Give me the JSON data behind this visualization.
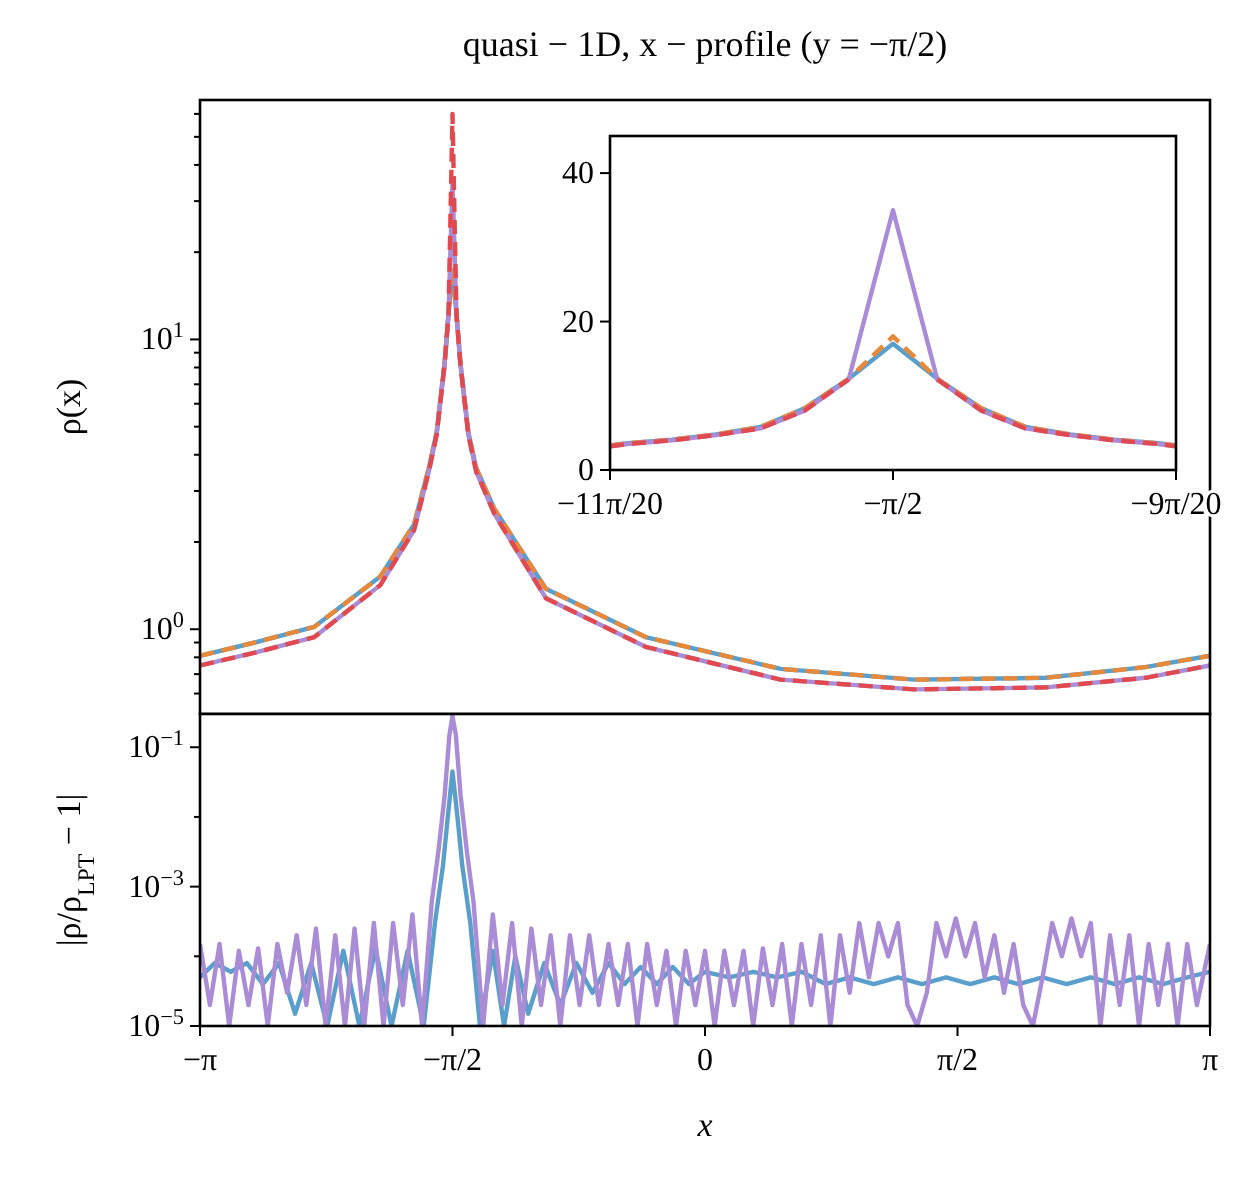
{
  "chart_data": [
    {
      "type": "line",
      "title": "quasi − 1D, x − profile (y = −π/2)",
      "ylabel": "ρ(x)",
      "log": "y",
      "tick_labels": "y",
      "xlim": [
        -3.1416,
        3.1416
      ],
      "xticks": [
        {
          "value": -3.1416,
          "label": null
        },
        {
          "value": -1.5708,
          "label": null
        },
        {
          "value": 0,
          "label": null
        },
        {
          "value": 1.5708,
          "label": null
        },
        {
          "value": 3.1416,
          "label": null
        }
      ],
      "ylim": [
        0.51,
        67
      ],
      "yticks": [
        {
          "value": 0.6,
          "label": null
        },
        {
          "value": 0.7,
          "label": null
        },
        {
          "value": 0.8,
          "label": null
        },
        {
          "value": 0.9,
          "label": null
        },
        {
          "value": 1,
          "label": "10$^{0}$"
        },
        {
          "value": 2,
          "label": null
        },
        {
          "value": 3,
          "label": null
        },
        {
          "value": 4,
          "label": null
        },
        {
          "value": 5,
          "label": null
        },
        {
          "value": 6,
          "label": null
        },
        {
          "value": 7,
          "label": null
        },
        {
          "value": 8,
          "label": null
        },
        {
          "value": 9,
          "label": null
        },
        {
          "value": 10,
          "label": "10$^{1}$"
        },
        {
          "value": 20,
          "label": null
        },
        {
          "value": 30,
          "label": null
        },
        {
          "value": 40,
          "label": null
        },
        {
          "value": 50,
          "label": null
        },
        {
          "value": 60,
          "label": null
        }
      ],
      "x": [
        -3.1416,
        -2.8,
        -2.43,
        -2.02,
        -1.81,
        -1.7181,
        -1.669,
        -1.6199,
        -1.5954,
        -1.5708,
        -1.5462,
        -1.5217,
        -1.4726,
        -1.4235,
        -1.31,
        -0.99,
        -0.37,
        0.47,
        1.3,
        2.12,
        2.74,
        3.1416
      ],
      "series": [
        {
          "color": "#5a9fcb",
          "values": [
            0.81,
            0.9,
            1.02,
            1.52,
            2.3,
            3.6,
            4.8,
            8.3,
            12.3,
            17,
            12.3,
            8.3,
            4.8,
            3.6,
            2.6,
            1.38,
            0.94,
            0.73,
            0.67,
            0.68,
            0.74,
            0.81
          ]
        },
        {
          "color": "#e8893a",
          "line_style": "dashed",
          "values": [
            0.81,
            0.9,
            1.02,
            1.52,
            2.3,
            3.6,
            4.8,
            8.3,
            12.3,
            18,
            12.3,
            8.3,
            4.8,
            3.6,
            2.6,
            1.38,
            0.94,
            0.73,
            0.67,
            0.68,
            0.74,
            0.81
          ]
        },
        {
          "color": "#a98bd6",
          "values": [
            0.75,
            0.83,
            0.94,
            1.42,
            2.2,
            3.5,
            4.7,
            8.2,
            12.2,
            35,
            12.2,
            8.2,
            4.7,
            3.5,
            2.5,
            1.28,
            0.87,
            0.67,
            0.62,
            0.63,
            0.68,
            0.75
          ]
        },
        {
          "color": "#e2494e",
          "line_style": "dashed",
          "values": [
            0.75,
            0.83,
            0.94,
            1.42,
            2.2,
            3.5,
            4.7,
            8.2,
            12.2,
            60,
            12.2,
            8.2,
            4.7,
            3.5,
            2.5,
            1.28,
            0.87,
            0.67,
            0.62,
            0.63,
            0.68,
            0.75
          ]
        }
      ]
    },
    {
      "type": "line",
      "xlim": [
        -1.7279,
        -1.4137
      ],
      "xticks": [
        {
          "value": -1.7279,
          "label": "−11π/20"
        },
        {
          "value": -1.5708,
          "label": "−π/2"
        },
        {
          "value": -1.4137,
          "label": "−9π/20"
        }
      ],
      "ylim": [
        0,
        45
      ],
      "yticks": [
        0,
        20,
        40
      ],
      "x": [
        -1.7279,
        -1.7181,
        -1.6935,
        -1.669,
        -1.6444,
        -1.6199,
        -1.5954,
        -1.5708,
        -1.5462,
        -1.5217,
        -1.4972,
        -1.4726,
        -1.4481,
        -1.4235,
        -1.4137
      ],
      "series": [
        {
          "color": "#5a9fcb",
          "values": [
            3.3,
            3.6,
            4.1,
            4.8,
            5.8,
            8.3,
            12.3,
            17,
            12.3,
            8.3,
            5.8,
            4.8,
            4.1,
            3.6,
            3.3
          ]
        },
        {
          "color": "#e8893a",
          "line_style": "dashed",
          "values": [
            3.3,
            3.6,
            4.1,
            4.8,
            5.8,
            8.3,
            12.3,
            18,
            12.3,
            8.3,
            5.8,
            4.8,
            4.1,
            3.6,
            3.3
          ]
        },
        {
          "color": "#a98bd6",
          "values": [
            3.2,
            3.5,
            4.0,
            4.7,
            5.6,
            8.0,
            12.2,
            35,
            12.2,
            8.0,
            5.6,
            4.7,
            4.0,
            3.5,
            3.2
          ]
        },
        {
          "color": "#e2494e",
          "line_style": "dashed",
          "values": [
            3.2,
            3.5,
            4.0,
            4.7,
            5.6,
            8.0,
            12.2,
            null,
            12.2,
            8.0,
            5.6,
            4.7,
            4.0,
            3.5,
            3.2
          ]
        }
      ]
    },
    {
      "type": "line",
      "xlabel": "x",
      "ylabel": "|ρ/ρ$_{LPT}$ − 1|",
      "log": "y",
      "xlim": [
        -3.1416,
        3.1416
      ],
      "xticks": [
        {
          "value": -3.1416,
          "label": "−π"
        },
        {
          "value": -1.5708,
          "label": "−π/2"
        },
        {
          "value": 0,
          "label": "0"
        },
        {
          "value": 1.5708,
          "label": "π/2"
        },
        {
          "value": 3.1416,
          "label": "π"
        }
      ],
      "ylim": [
        1e-05,
        0.3
      ],
      "yticks": [
        {
          "value": 1e-05,
          "label": "10$^{−5}$"
        },
        {
          "value": 0.0001,
          "label": null
        },
        {
          "value": 0.001,
          "label": "10$^{−3}$"
        },
        {
          "value": 0.01,
          "label": null
        },
        {
          "value": 0.1,
          "label": "10$^{−1}$"
        }
      ],
      "series": [
        {
          "color": "#5a9fcb",
          "x": [
            -3.1416,
            -3.05,
            -2.95,
            -2.85,
            -2.75,
            -2.65,
            -2.55,
            -2.45,
            -2.35,
            -2.25,
            -2.15,
            -2.05,
            -1.95,
            -1.85,
            -1.75,
            -1.68,
            -1.63,
            -1.6,
            -1.571,
            -1.54,
            -1.51,
            -1.46,
            -1.4,
            -1.32,
            -1.25,
            -1.18,
            -1.1,
            -1.0,
            -0.9,
            -0.8,
            -0.7,
            -0.6,
            -0.5,
            -0.4,
            -0.3,
            -0.2,
            -0.1,
            0,
            0.15,
            0.3,
            0.45,
            0.6,
            0.75,
            0.9,
            1.05,
            1.2,
            1.35,
            1.5,
            1.65,
            1.8,
            1.95,
            2.1,
            2.25,
            2.4,
            2.55,
            2.7,
            2.85,
            3.0,
            3.1416
          ],
          "values": [
            5e-05,
            8e-05,
            6e-05,
            8e-05,
            4e-05,
            8e-05,
            1.5e-05,
            8e-05,
            1e-05,
            0.00012,
            1e-05,
            0.00013,
            1e-05,
            0.00012,
            1e-05,
            0.0003,
            0.002,
            0.01,
            0.045,
            0.01,
            0.002,
            0.0003,
            1e-05,
            0.00012,
            1e-05,
            0.0001,
            1.5e-05,
            8e-05,
            2e-05,
            8e-05,
            3e-05,
            8e-05,
            4e-05,
            7e-05,
            4e-05,
            7e-05,
            4e-05,
            6e-05,
            5e-05,
            6e-05,
            5e-05,
            6e-05,
            4e-05,
            5e-05,
            4e-05,
            5e-05,
            4e-05,
            5e-05,
            4e-05,
            5e-05,
            4e-05,
            5e-05,
            4e-05,
            5e-05,
            4e-05,
            5e-05,
            4e-05,
            5e-05,
            6e-05
          ]
        },
        {
          "color": "#a98bd6",
          "x": [
            -3.1416,
            -3.08,
            -3.02,
            -2.96,
            -2.9,
            -2.84,
            -2.78,
            -2.72,
            -2.66,
            -2.6,
            -2.54,
            -2.48,
            -2.42,
            -2.36,
            -2.3,
            -2.24,
            -2.18,
            -2.12,
            -2.06,
            -2.0,
            -1.94,
            -1.88,
            -1.82,
            -1.76,
            -1.7,
            -1.66,
            -1.62,
            -1.59,
            -1.571,
            -1.55,
            -1.52,
            -1.48,
            -1.44,
            -1.38,
            -1.32,
            -1.26,
            -1.2,
            -1.14,
            -1.08,
            -1.02,
            -0.96,
            -0.9,
            -0.84,
            -0.78,
            -0.72,
            -0.66,
            -0.6,
            -0.54,
            -0.48,
            -0.42,
            -0.36,
            -0.3,
            -0.24,
            -0.18,
            -0.12,
            -0.06,
            0,
            0.06,
            0.12,
            0.18,
            0.24,
            0.3,
            0.36,
            0.42,
            0.48,
            0.54,
            0.6,
            0.66,
            0.72,
            0.78,
            0.84,
            0.9,
            0.96,
            1.02,
            1.08,
            1.14,
            1.2,
            1.26,
            1.32,
            1.38,
            1.44,
            1.5,
            1.56,
            1.62,
            1.68,
            1.74,
            1.8,
            1.86,
            1.92,
            1.98,
            2.04,
            2.1,
            2.16,
            2.22,
            2.28,
            2.34,
            2.4,
            2.46,
            2.52,
            2.58,
            2.64,
            2.7,
            2.76,
            2.82,
            2.88,
            2.94,
            3.0,
            3.06,
            3.1416
          ],
          "values": [
            0.00015,
            2e-05,
            0.00015,
            1e-05,
            0.00012,
            2e-05,
            0.00013,
            1e-05,
            0.00015,
            3e-05,
            0.0002,
            2e-05,
            0.00025,
            1e-05,
            0.0002,
            1e-05,
            0.00025,
            1e-05,
            0.0003,
            1e-05,
            0.0003,
            2e-05,
            0.0004,
            1e-05,
            0.0006,
            0.003,
            0.02,
            0.15,
            0.28,
            0.15,
            0.02,
            0.003,
            0.0006,
            1e-05,
            0.0004,
            2e-05,
            0.0003,
            1e-05,
            0.00025,
            2e-05,
            0.0002,
            1e-05,
            0.0002,
            2e-05,
            0.0002,
            2e-05,
            0.00015,
            2e-05,
            0.00015,
            1e-05,
            0.00015,
            2e-05,
            0.00012,
            1e-05,
            0.00012,
            2e-05,
            0.00012,
            1e-05,
            0.00012,
            2e-05,
            0.00012,
            1e-05,
            0.00013,
            2e-05,
            0.00015,
            1e-05,
            0.00015,
            2e-05,
            0.0002,
            1e-05,
            0.0002,
            3e-05,
            0.0003,
            5e-05,
            0.0003,
            0.0001,
            0.0003,
            2e-05,
            1e-05,
            3e-05,
            0.0003,
            0.0001,
            0.00035,
            0.0001,
            0.0003,
            5e-05,
            0.0002,
            3e-05,
            0.00015,
            2e-05,
            1e-05,
            5e-05,
            0.0003,
            0.0001,
            0.00035,
            0.0001,
            0.0003,
            1e-05,
            0.0002,
            2e-05,
            0.0002,
            1e-05,
            0.00015,
            2e-05,
            0.00015,
            1e-05,
            0.00015,
            2e-05,
            0.00015
          ]
        }
      ]
    }
  ]
}
